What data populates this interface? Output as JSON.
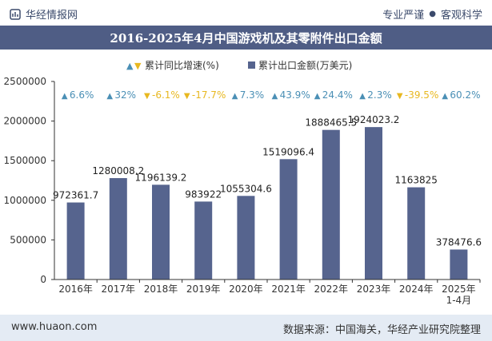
{
  "header": {
    "brand": "华经情报网",
    "tag1": "专业严谨",
    "tag2": "客观科学",
    "title": "2016-2025年4月中国游戏机及其零附件出口金额"
  },
  "legend": {
    "growth_label": "累计同比增速(%)",
    "export_label": "累计出口金额(万美元)"
  },
  "colors": {
    "bar": "#56648e",
    "up": "#4a8fb5",
    "down": "#e8b820",
    "title_bg": "#4f5d85"
  },
  "footer": {
    "left": "www.huaon.com",
    "right": "数据来源：中国海关，华经产业研究院整理"
  },
  "chart_data": {
    "type": "bar",
    "categories": [
      "2016年",
      "2017年",
      "2018年",
      "2019年",
      "2020年",
      "2021年",
      "2022年",
      "2023年",
      "2024年",
      "2025年\n1-4月"
    ],
    "values": [
      972361.7,
      1280008.2,
      1196139.2,
      983922,
      1055304.6,
      1519096.4,
      1888465.5,
      1924023.2,
      1163825,
      378476.6
    ],
    "value_labels": [
      "972361.7",
      "1280008.2",
      "1196139.2",
      "983922",
      "1055304.6",
      "1519096.4",
      "1888465.5",
      "1924023.2",
      "1163825",
      "378476.6"
    ],
    "growth": [
      6.6,
      32,
      -6.1,
      -17.7,
      7.3,
      43.9,
      24.4,
      2.3,
      -39.5,
      60.2
    ],
    "growth_labels": [
      "6.6%",
      "32%",
      "-6.1%",
      "-17.7%",
      "7.3%",
      "43.9%",
      "24.4%",
      "2.3%",
      "-39.5%",
      "60.2%"
    ],
    "yticks": [
      "0",
      "500000",
      "1000000",
      "1500000",
      "2000000",
      "2500000"
    ],
    "ylim": [
      0,
      2500000
    ],
    "series": [
      {
        "name": "累计出口金额(万美元)"
      },
      {
        "name": "累计同比增速(%)"
      }
    ],
    "legend_position": "top-center"
  }
}
